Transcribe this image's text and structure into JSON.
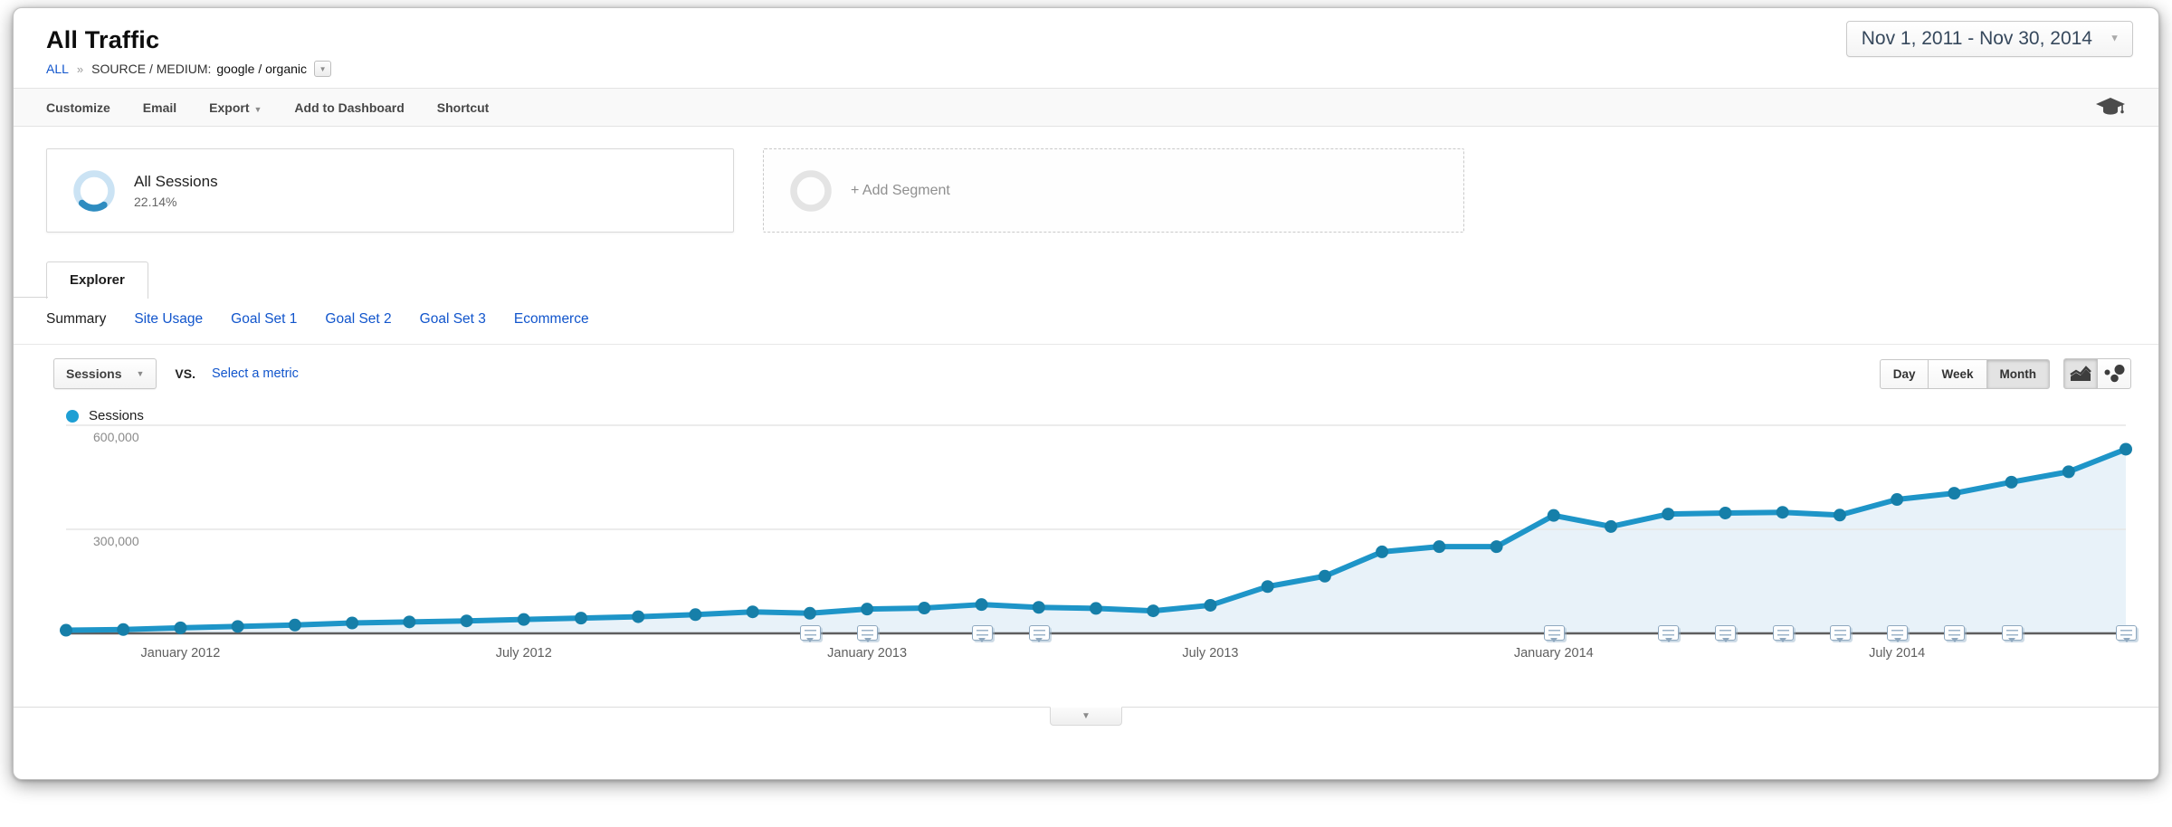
{
  "header": {
    "title": "All Traffic",
    "date_range": "Nov 1, 2011 - Nov 30, 2014"
  },
  "breadcrumb": {
    "all": "ALL",
    "separator": "»",
    "dimension": "SOURCE / MEDIUM:",
    "value": "google / organic"
  },
  "toolbar": {
    "customize": "Customize",
    "email": "Email",
    "export": "Export",
    "add_to_dashboard": "Add to Dashboard",
    "shortcut": "Shortcut"
  },
  "segments": {
    "active": {
      "name": "All Sessions",
      "percent": "22.14%"
    },
    "add_label": "+ Add Segment"
  },
  "explorer": {
    "tab_label": "Explorer"
  },
  "subnav": {
    "active": "Summary",
    "links": [
      "Site Usage",
      "Goal Set 1",
      "Goal Set 2",
      "Goal Set 3",
      "Ecommerce"
    ]
  },
  "metric_controls": {
    "metric": "Sessions",
    "vs_label": "VS.",
    "select_label": "Select a metric"
  },
  "granularity": {
    "options": [
      "Day",
      "Week",
      "Month"
    ],
    "active": "Month"
  },
  "legend": {
    "label": "Sessions"
  },
  "chart_data": {
    "type": "line",
    "title": "Sessions over time (monthly)",
    "x": [
      "Nov 2011",
      "Dec 2011",
      "Jan 2012",
      "Feb 2012",
      "Mar 2012",
      "Apr 2012",
      "May 2012",
      "Jun 2012",
      "Jul 2012",
      "Aug 2012",
      "Sep 2012",
      "Oct 2012",
      "Nov 2012",
      "Dec 2012",
      "Jan 2013",
      "Feb 2013",
      "Mar 2013",
      "Apr 2013",
      "May 2013",
      "Jun 2013",
      "Jul 2013",
      "Aug 2013",
      "Sep 2013",
      "Oct 2013",
      "Nov 2013",
      "Dec 2013",
      "Jan 2014",
      "Feb 2014",
      "Mar 2014",
      "Apr 2014",
      "May 2014",
      "Jun 2014",
      "Jul 2014",
      "Aug 2014",
      "Sep 2014",
      "Oct 2014",
      "Nov 2014"
    ],
    "series": [
      {
        "name": "Sessions",
        "values": [
          9000,
          11000,
          16000,
          20000,
          24000,
          30000,
          33000,
          36000,
          40000,
          44000,
          48000,
          54000,
          62000,
          58000,
          70000,
          73000,
          83000,
          75000,
          72000,
          65000,
          81000,
          135000,
          165000,
          235000,
          250000,
          250000,
          340000,
          308000,
          344000,
          347000,
          349000,
          341000,
          386000,
          404000,
          436000,
          466000,
          531000
        ]
      }
    ],
    "ylim": [
      0,
      640000
    ],
    "y_ticks": [
      {
        "label": "600,000",
        "value": 600000
      },
      {
        "label": "300,000",
        "value": 300000
      }
    ],
    "x_ticks": [
      {
        "label": "January 2012",
        "index": 2
      },
      {
        "label": "July 2012",
        "index": 8
      },
      {
        "label": "January 2013",
        "index": 14
      },
      {
        "label": "July 2013",
        "index": 20
      },
      {
        "label": "January 2014",
        "index": 26
      },
      {
        "label": "July 2014",
        "index": 32
      }
    ],
    "annotation_month_indices": [
      13,
      14,
      16,
      17,
      26,
      28,
      29,
      30,
      31,
      32,
      33,
      34,
      36
    ],
    "legend_position": "top-left",
    "grid": true,
    "colors": {
      "line": "#1e95c8",
      "dot": "#167fa9",
      "fill": "#e8f2f9",
      "legend_dot": "#1e9fd4",
      "link": "#1155cc"
    }
  }
}
